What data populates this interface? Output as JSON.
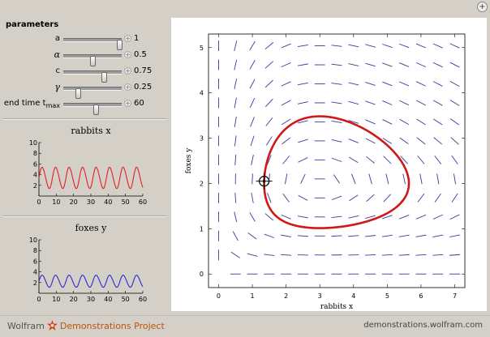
{
  "window": {
    "corner_button": "+"
  },
  "controls": {
    "title": "parameters",
    "params": [
      {
        "label": "a",
        "value": "1",
        "fraction": 0.96
      },
      {
        "label": "α",
        "value": "0.5",
        "fraction": 0.5
      },
      {
        "label": "c",
        "value": "0.75",
        "fraction": 0.7
      },
      {
        "label": "γ",
        "value": "0.25",
        "fraction": 0.25
      },
      {
        "label": "end time t",
        "label_sub": "max",
        "value": "60",
        "fraction": 0.55
      }
    ]
  },
  "rabbits_plot": {
    "title": "rabbits x",
    "color": "#e02020",
    "ylim": [
      0,
      10
    ],
    "xlim": [
      0,
      60
    ],
    "yticks": [
      "2",
      "4",
      "6",
      "8",
      "10"
    ],
    "xticks": [
      "0",
      "10",
      "20",
      "30",
      "40",
      "50",
      "60"
    ],
    "series": {
      "min": 1.2,
      "max": 5.6,
      "period": 7.8
    }
  },
  "foxes_plot": {
    "title": "foxes y",
    "color": "#2a2ad0",
    "ylim": [
      0,
      10
    ],
    "xlim": [
      0,
      60
    ],
    "yticks": [
      "2",
      "4",
      "6",
      "8",
      "10"
    ],
    "xticks": [
      "0",
      "10",
      "20",
      "30",
      "40",
      "50",
      "60"
    ],
    "series": {
      "min": 1.0,
      "max": 3.5,
      "period": 7.8
    }
  },
  "phase_plot": {
    "xlabel": "rabbits x",
    "ylabel": "foxes y",
    "xlim": [
      -0.3,
      7.3
    ],
    "ylim": [
      -0.3,
      5.3
    ],
    "xticks": [
      "0",
      "1",
      "2",
      "3",
      "4",
      "5",
      "6",
      "7"
    ],
    "yticks": [
      "0",
      "1",
      "2",
      "3",
      "4",
      "5"
    ],
    "field_color": "#3a3a9a",
    "orbit_color": "#d01818",
    "params": {
      "a": 1,
      "alpha": 0.5,
      "c": 0.75,
      "gamma": 0.25
    },
    "initial_point": {
      "x": 1.35,
      "y": 2.05
    },
    "grid": false
  },
  "footer": {
    "brand_left": "Wolfram",
    "brand_right": "Demonstrations Project",
    "url": "demonstrations.wolfram.com"
  }
}
